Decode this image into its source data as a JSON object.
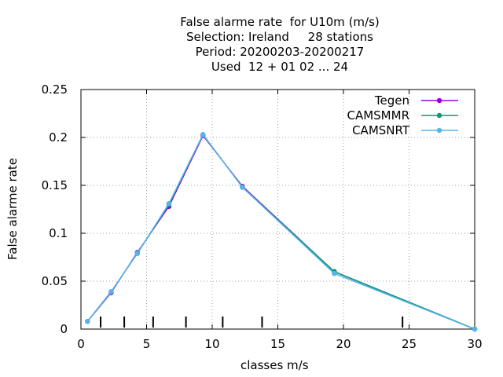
{
  "chart_data": {
    "type": "line",
    "title_lines": [
      "False alarme rate  for U10m (m/s)",
      "Selection: Ireland     28 stations",
      "Period: 20200203-20200217",
      "Used  12 + 01 02 ... 24"
    ],
    "xlabel": "classes m/s",
    "ylabel": "False alarme rate",
    "xlim": [
      0,
      30
    ],
    "ylim": [
      0,
      0.25
    ],
    "x_ticks": [
      "0",
      "5",
      "10",
      "15",
      "20",
      "25",
      "30"
    ],
    "y_ticks": [
      "0",
      "0.05",
      "0.1",
      "0.15",
      "0.2",
      "0.25"
    ],
    "grid": true,
    "legend_position": "top-right",
    "class_boundaries": [
      1.5,
      3.3,
      5.5,
      8.0,
      10.8,
      13.8,
      24.5
    ],
    "series": [
      {
        "name": "Tegen",
        "color": "#9400d3",
        "x": [
          0.5,
          2.3,
          4.3,
          6.7,
          9.3,
          12.3,
          19.3,
          30.0
        ],
        "y": [
          0.008,
          0.038,
          0.08,
          0.128,
          0.202,
          0.149,
          0.06,
          0.0
        ]
      },
      {
        "name": "CAMSMMR",
        "color": "#009e73",
        "x": [
          0.5,
          2.3,
          4.3,
          6.7,
          9.3,
          12.3,
          19.3,
          30.0
        ],
        "y": [
          0.008,
          0.039,
          0.079,
          0.13,
          0.203,
          0.148,
          0.06,
          0.0
        ]
      },
      {
        "name": "CAMSNRT",
        "color": "#56b4e9",
        "x": [
          0.5,
          2.3,
          4.3,
          6.7,
          9.3,
          12.3,
          19.3,
          30.0
        ],
        "y": [
          0.008,
          0.039,
          0.079,
          0.131,
          0.203,
          0.148,
          0.058,
          0.0
        ]
      }
    ]
  }
}
